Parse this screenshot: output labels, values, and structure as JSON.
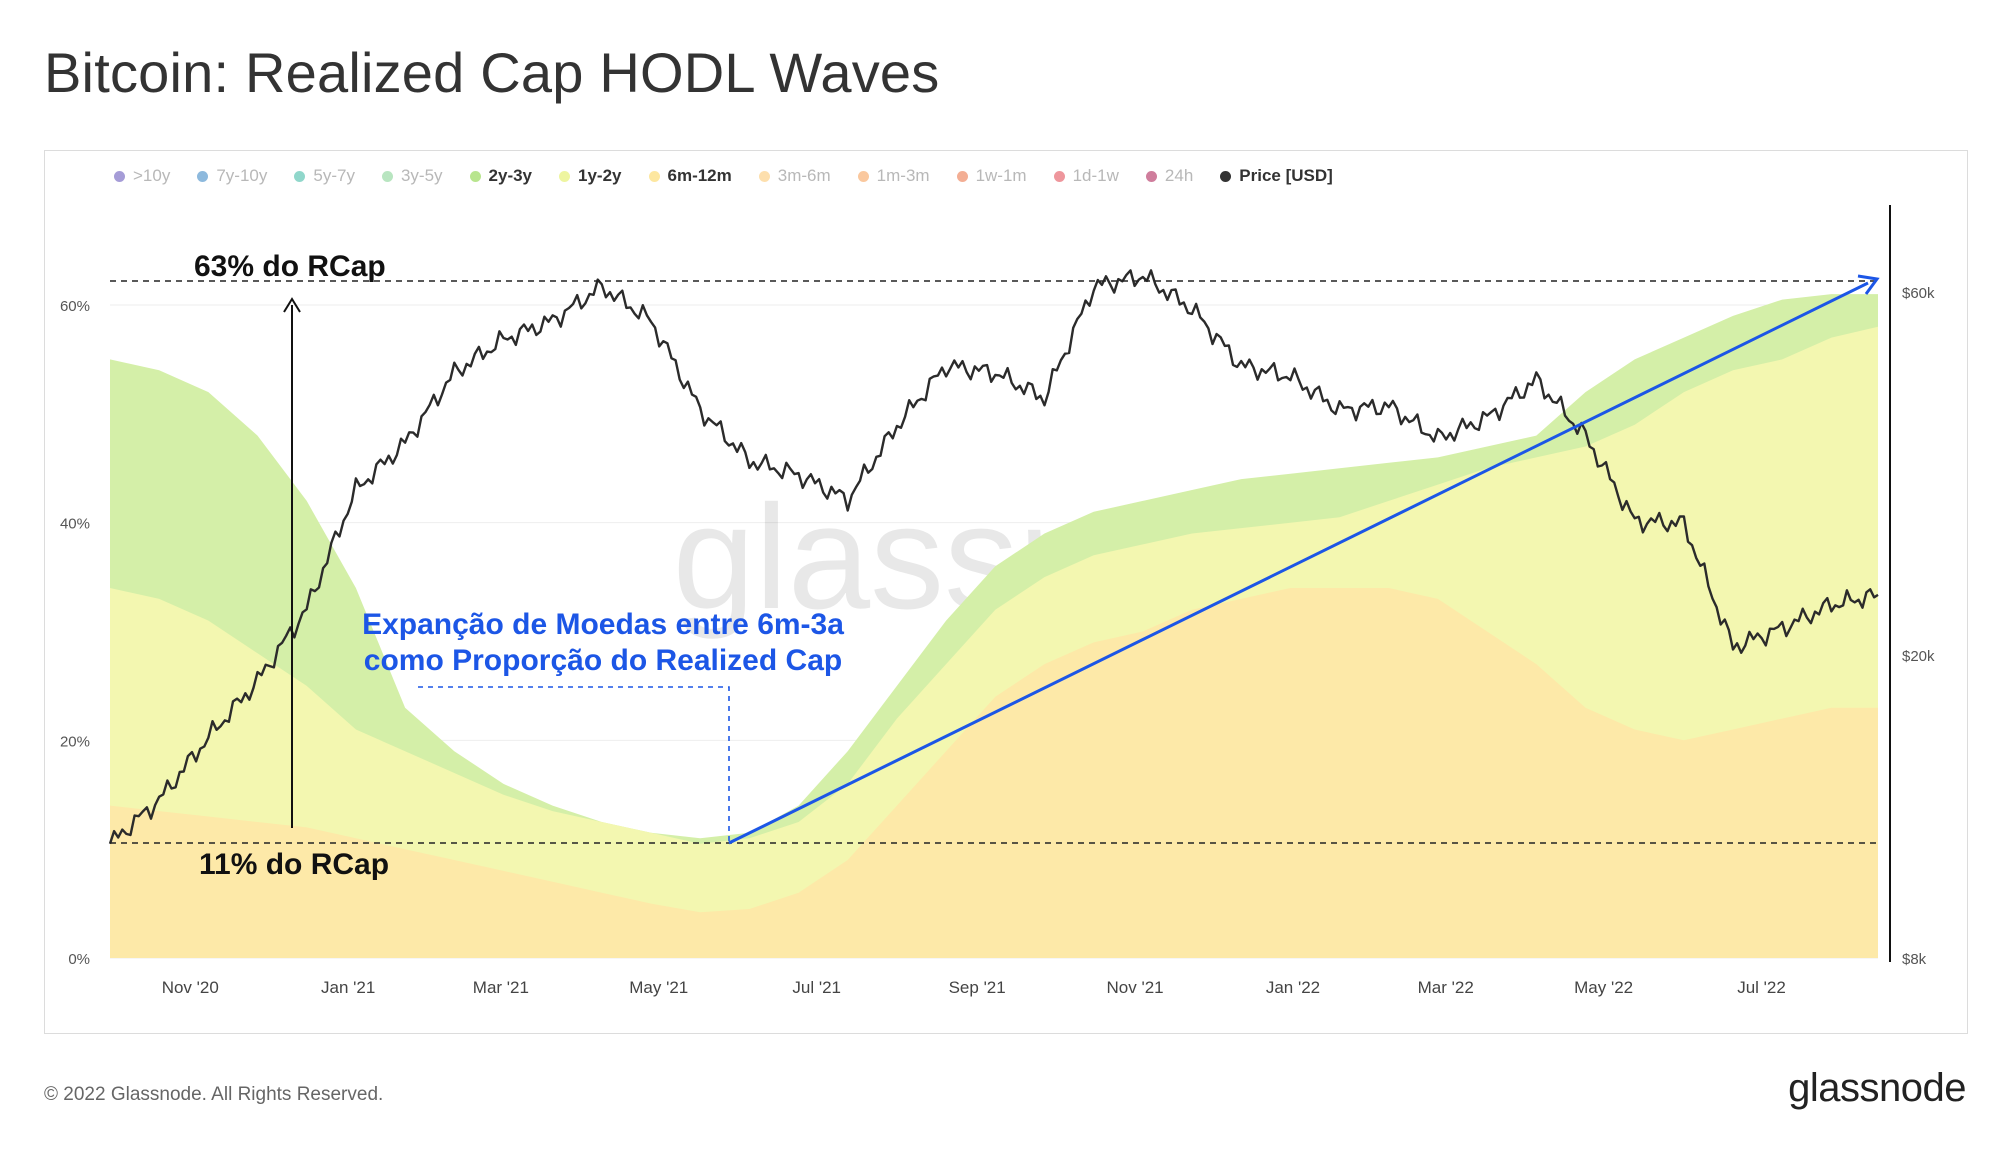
{
  "title": "Bitcoin: Realized Cap HODL Waves",
  "footer": {
    "copyright": "© 2022 Glassnode. All Rights Reserved.",
    "logo": "glassnode"
  },
  "watermark": "glassnode",
  "legend": [
    {
      "label": ">10y",
      "color": "#5b4bb7",
      "active": false
    },
    {
      "label": "7y-10y",
      "color": "#2f7fc1",
      "active": false
    },
    {
      "label": "5y-7y",
      "color": "#35b7a0",
      "active": false
    },
    {
      "label": "3y-5y",
      "color": "#7dd08c",
      "active": false
    },
    {
      "label": "2y-3y",
      "color": "#b8e58e",
      "active": true
    },
    {
      "label": "1y-2y",
      "color": "#eef5a0",
      "active": true
    },
    {
      "label": "6m-12m",
      "color": "#fde7a0",
      "active": true
    },
    {
      "label": "3m-6m",
      "color": "#fcc46a",
      "active": false
    },
    {
      "label": "1m-3m",
      "color": "#f59a4e",
      "active": false
    },
    {
      "label": "1w-1m",
      "color": "#ea6b3c",
      "active": false
    },
    {
      "label": "1d-1w",
      "color": "#e0404a",
      "active": false
    },
    {
      "label": "24h",
      "color": "#a8124a",
      "active": false
    },
    {
      "label": "Price [USD]",
      "color": "#333333",
      "active": true
    }
  ],
  "annotations": {
    "top_line": "63% do RCap",
    "bottom_line": "11% do RCap",
    "callout_line1": "Expanção de Moedas entre 6m-3a",
    "callout_line2": "como Proporção do Realized Cap",
    "callout_color": "#1c56e6"
  },
  "chart_data": {
    "type": "area",
    "x_ticks": [
      "Nov '20",
      "Jan '21",
      "Mar '21",
      "May '21",
      "Jul '21",
      "Sep '21",
      "Nov '21",
      "Jan '22",
      "Mar '22",
      "May '22",
      "Jul '22"
    ],
    "x_range": [
      "2020-10-01",
      "2022-08-15"
    ],
    "y_left_ticks": [
      "0%",
      "20%",
      "40%",
      "60%"
    ],
    "y_left_range": [
      0,
      70
    ],
    "y_right_ticks": [
      "$8k",
      "$20k",
      "$60k"
    ],
    "y_right_scale": "log",
    "y_right_range": [
      8000,
      75000
    ],
    "dates": [
      "2020-10-01",
      "2020-10-20",
      "2020-11-08",
      "2020-11-27",
      "2020-12-16",
      "2021-01-04",
      "2021-01-23",
      "2021-02-11",
      "2021-03-02",
      "2021-03-21",
      "2021-04-09",
      "2021-04-28",
      "2021-05-17",
      "2021-06-05",
      "2021-06-24",
      "2021-07-13",
      "2021-08-01",
      "2021-08-20",
      "2021-09-08",
      "2021-09-27",
      "2021-10-16",
      "2021-11-04",
      "2021-11-23",
      "2021-12-12",
      "2021-12-31",
      "2022-01-19",
      "2022-02-07",
      "2022-02-26",
      "2022-03-17",
      "2022-04-05",
      "2022-04-24",
      "2022-05-13",
      "2022-06-01",
      "2022-06-20",
      "2022-07-09",
      "2022-07-28",
      "2022-08-15"
    ],
    "series": [
      {
        "name": "6m-12m",
        "color": "#fde9a8",
        "values": [
          14,
          13.5,
          13,
          12.5,
          12,
          11,
          10,
          9,
          8,
          7,
          6,
          5,
          4.2,
          4.5,
          6,
          9,
          14,
          19,
          24,
          27,
          29,
          30,
          32,
          33,
          34,
          34,
          34,
          33,
          30,
          27,
          23,
          21,
          20,
          21,
          22,
          23,
          23
        ]
      },
      {
        "name": "1y-2y",
        "color": "#f3f7b0",
        "values": [
          34,
          33,
          31,
          28,
          25,
          21,
          19,
          17,
          15,
          13.5,
          12.5,
          11.5,
          10.5,
          11,
          12.5,
          16,
          22,
          27,
          32,
          35,
          37,
          38,
          39,
          39.5,
          40,
          40.5,
          42,
          43.5,
          45,
          46,
          47,
          49,
          52,
          54,
          55,
          57,
          58
        ]
      },
      {
        "name": "2y-3y",
        "color": "#d4efa8",
        "values": [
          55,
          54,
          52,
          48,
          42,
          34,
          23,
          19,
          16,
          14,
          12.5,
          11.5,
          11,
          11.5,
          14,
          19,
          25,
          31,
          36,
          39,
          41,
          42,
          43,
          44,
          44.5,
          45,
          45.5,
          46,
          47,
          48,
          52,
          55,
          57,
          59,
          60.5,
          61,
          61
        ]
      }
    ],
    "price_usd": [
      11300,
      12900,
      15600,
      18500,
      23000,
      33000,
      38000,
      47000,
      52000,
      55000,
      61000,
      55000,
      42000,
      36000,
      34500,
      32000,
      40000,
      48000,
      47000,
      43500,
      61000,
      63000,
      57000,
      48000,
      46500,
      42000,
      42500,
      38500,
      41000,
      46000,
      38800,
      30000,
      29800,
      20500,
      21700,
      23300,
      24000
    ]
  }
}
